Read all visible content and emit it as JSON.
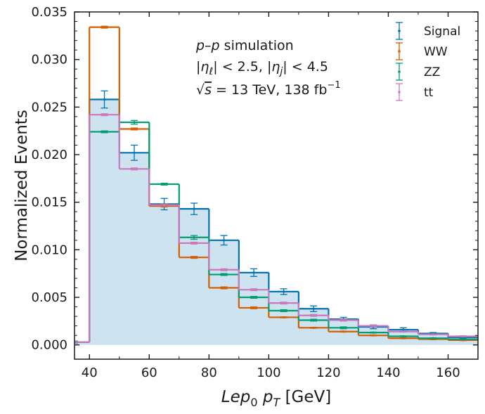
{
  "chart_data": {
    "type": "histogram",
    "title": "",
    "xlabel": "Lep",
    "xlabel_sub": "0",
    "xlabel_var": "p",
    "xlabel_var_sub": "T",
    "xlabel_unit": "[GeV]",
    "ylabel": "Normalized Events",
    "xlim": [
      35,
      170
    ],
    "ylim": [
      -0.0015,
      0.035
    ],
    "xticks": [
      40,
      60,
      80,
      100,
      120,
      140,
      160
    ],
    "xtick_labels": [
      "40",
      "60",
      "80",
      "100",
      "120",
      "140",
      "160"
    ],
    "yticks": [
      0.0,
      0.005,
      0.01,
      0.015,
      0.02,
      0.025,
      0.03,
      0.035
    ],
    "ytick_labels": [
      "0.000",
      "0.005",
      "0.010",
      "0.015",
      "0.020",
      "0.025",
      "0.030",
      "0.035"
    ],
    "bin_edges": [
      30,
      40,
      50,
      60,
      70,
      80,
      90,
      100,
      110,
      120,
      130,
      140,
      150,
      160,
      170
    ],
    "legend_position": "top-right",
    "annotation": {
      "line1_italic": "p–p",
      "line1_rest": " simulation",
      "line2": "|η_ℓ| < 2.5, |η_j| < 4.5",
      "line2_a": "|",
      "line2_eta1": "η",
      "line2_sub1": "ℓ",
      "line2_b": "| < 2.5, |",
      "line2_eta2": "η",
      "line2_sub2": "j",
      "line2_c": "| < 4.5",
      "line3_sqrt": "√",
      "line3_s": "s",
      "line3_rest": " = 13 TeV, 138 fb",
      "line3_sup": "−1"
    },
    "series": [
      {
        "name": "Signal",
        "color": "#0173b2",
        "filled": true,
        "fill_color": "#cde3f0",
        "values": [
          0.0003,
          0.0258,
          0.0202,
          0.0148,
          0.0143,
          0.011,
          0.0076,
          0.0056,
          0.0038,
          0.0027,
          0.0019,
          0.0016,
          0.0012,
          0.0008
        ],
        "errors": [
          0.0001,
          0.0009,
          0.0008,
          0.0006,
          0.0006,
          0.0005,
          0.0004,
          0.0003,
          0.0003,
          0.0002,
          0.0002,
          0.0002,
          0.0001,
          0.0001
        ]
      },
      {
        "name": "WW",
        "color": "#d55e00",
        "filled": false,
        "values": [
          0.0003,
          0.0334,
          0.0227,
          0.0146,
          0.0092,
          0.006,
          0.0039,
          0.0029,
          0.0018,
          0.0014,
          0.001,
          0.0007,
          0.0006,
          0.0005
        ],
        "errors": [
          5e-05,
          0.0001,
          0.0001,
          0.0001,
          0.0001,
          0.0001,
          0.0001,
          5e-05,
          5e-05,
          5e-05,
          5e-05,
          5e-05,
          5e-05,
          5e-05
        ]
      },
      {
        "name": "ZZ",
        "color": "#029e73",
        "filled": false,
        "values": [
          0.0003,
          0.0224,
          0.0234,
          0.0169,
          0.0113,
          0.0074,
          0.005,
          0.0036,
          0.0026,
          0.0018,
          0.0013,
          0.0009,
          0.0007,
          0.0006
        ],
        "errors": [
          5e-05,
          0.0001,
          0.0002,
          0.0001,
          0.0002,
          0.0001,
          0.0001,
          0.0001,
          0.0001,
          0.0001,
          5e-05,
          5e-05,
          5e-05,
          5e-05
        ]
      },
      {
        "name": "tt",
        "color": "#cc78bc",
        "filled": false,
        "values": [
          0.0003,
          0.0242,
          0.0185,
          0.0147,
          0.0107,
          0.0079,
          0.0058,
          0.0044,
          0.0031,
          0.0026,
          0.002,
          0.0014,
          0.0011,
          0.0009
        ],
        "errors": [
          5e-05,
          0.0001,
          0.0001,
          0.0001,
          0.0001,
          0.0001,
          0.0001,
          0.0001,
          0.0001,
          0.0001,
          0.0001,
          5e-05,
          5e-05,
          5e-05
        ]
      }
    ]
  }
}
